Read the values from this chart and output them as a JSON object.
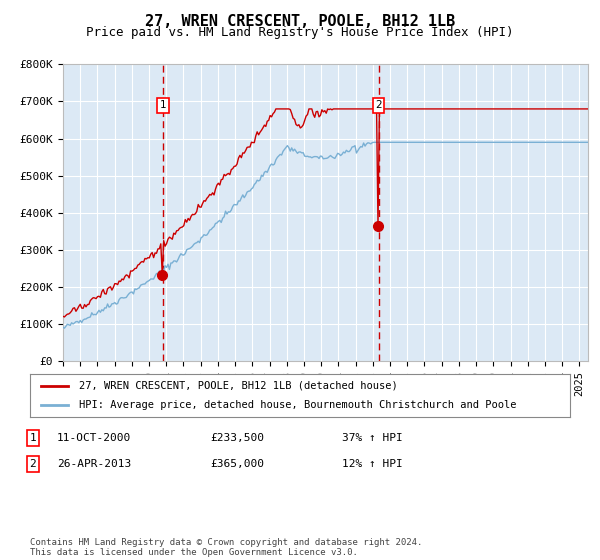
{
  "title": "27, WREN CRESCENT, POOLE, BH12 1LB",
  "subtitle": "Price paid vs. HM Land Registry's House Price Index (HPI)",
  "ylim": [
    0,
    800000
  ],
  "yticks": [
    0,
    100000,
    200000,
    300000,
    400000,
    500000,
    600000,
    700000,
    800000
  ],
  "ytick_labels": [
    "£0",
    "£100K",
    "£200K",
    "£300K",
    "£400K",
    "£500K",
    "£600K",
    "£700K",
    "£800K"
  ],
  "xmin": 1995.0,
  "xmax": 2025.5,
  "background_color": "#ffffff",
  "plot_bg_color": "#dce9f5",
  "grid_color": "#ffffff",
  "line1_color": "#cc0000",
  "line2_color": "#7ab0d4",
  "sale1_x": 2000.79,
  "sale1_y": 233500,
  "sale2_x": 2013.33,
  "sale2_y": 365000,
  "sale1_label": "1",
  "sale2_label": "2",
  "legend1_text": "27, WREN CRESCENT, POOLE, BH12 1LB (detached house)",
  "legend2_text": "HPI: Average price, detached house, Bournemouth Christchurch and Poole",
  "annot1_num": "1",
  "annot1_date": "11-OCT-2000",
  "annot1_price": "£233,500",
  "annot1_hpi": "37% ↑ HPI",
  "annot2_num": "2",
  "annot2_date": "26-APR-2013",
  "annot2_price": "£365,000",
  "annot2_hpi": "12% ↑ HPI",
  "footer": "Contains HM Land Registry data © Crown copyright and database right 2024.\nThis data is licensed under the Open Government Licence v3.0.",
  "title_fontsize": 11,
  "subtitle_fontsize": 9
}
